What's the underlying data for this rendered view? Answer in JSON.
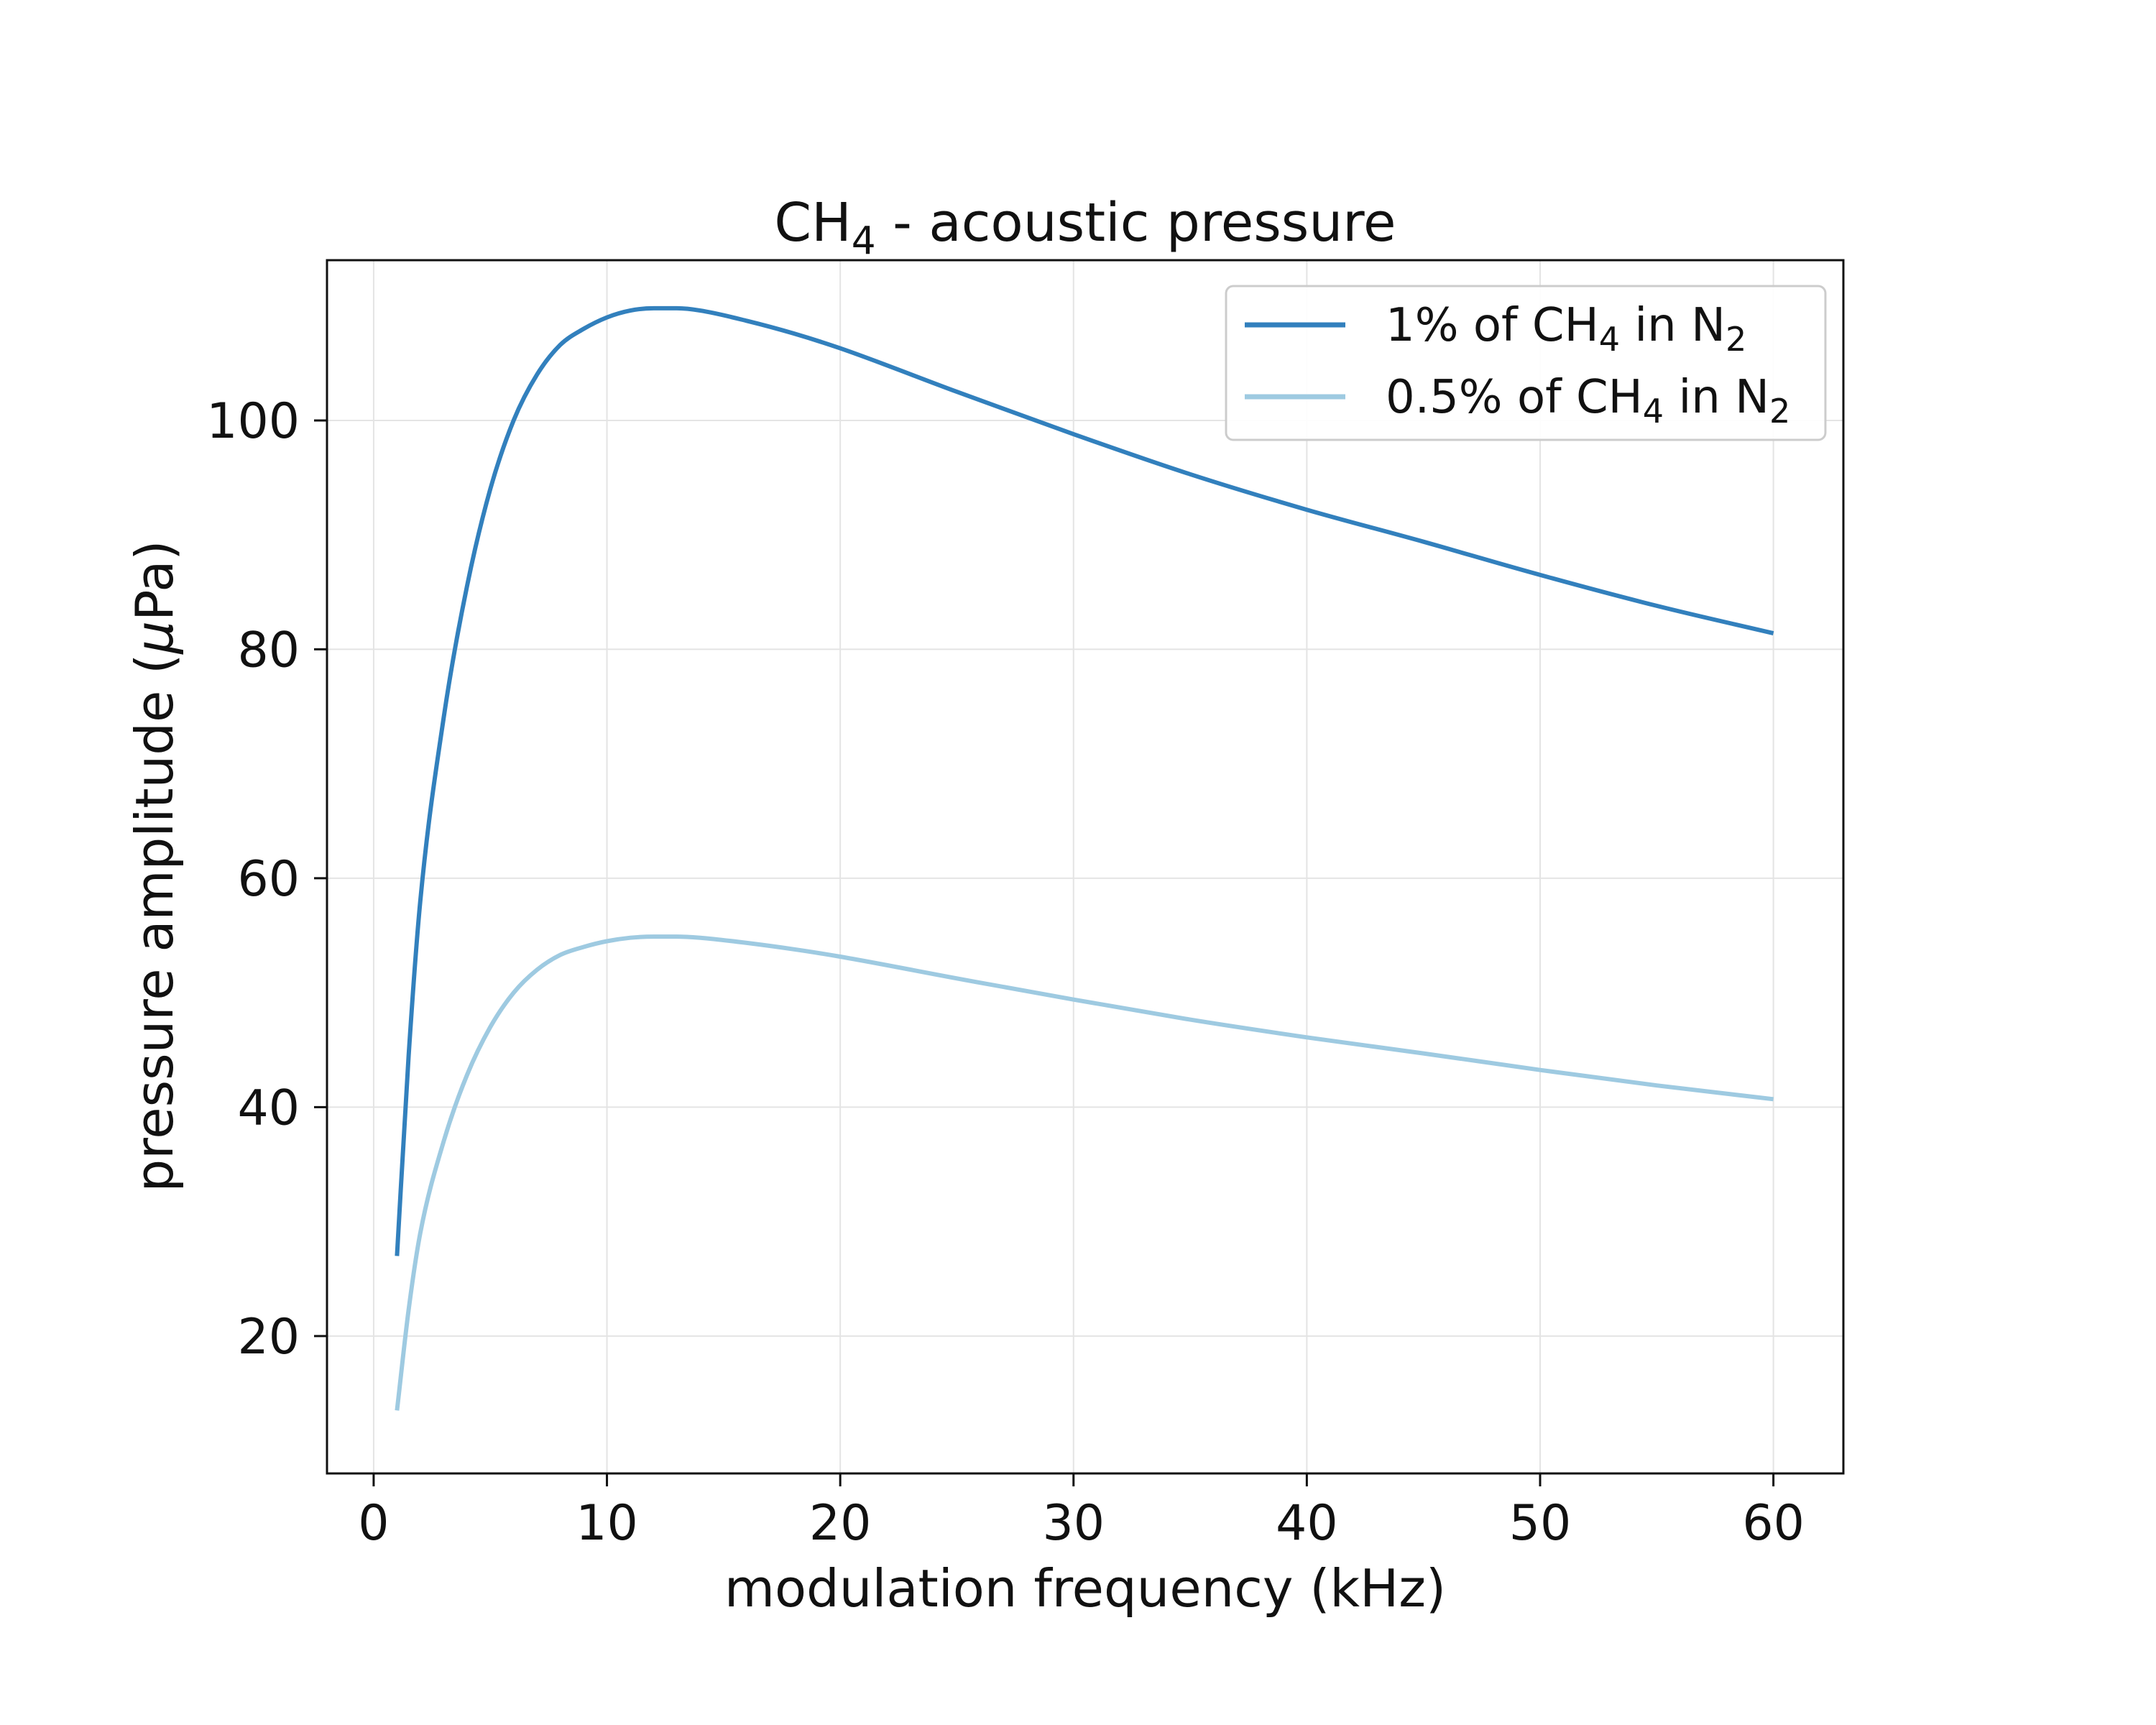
{
  "chart_data": {
    "type": "line",
    "title": {
      "main": "CH",
      "sub": "4",
      "rest": " - acoustic pressure"
    },
    "xlabel": "modulation frequency (kHz)",
    "ylabel": {
      "before": "pressure amplitude (",
      "mu": "μ",
      "after": "Pa)"
    },
    "xlim": [
      -2,
      63
    ],
    "ylim": [
      8,
      114
    ],
    "xticks": [
      0,
      10,
      20,
      30,
      40,
      50,
      60
    ],
    "xtick_labels": [
      "0",
      "10",
      "20",
      "30",
      "40",
      "50",
      "60"
    ],
    "yticks": [
      20,
      40,
      60,
      80,
      100
    ],
    "ytick_labels": [
      "20",
      "40",
      "60",
      "80",
      "100"
    ],
    "grid": true,
    "legend": {
      "position": "top-right"
    },
    "series": [
      {
        "name": "1% of CH4 in N2",
        "legend_parts": {
          "a": "1% of CH",
          "sub1": "4",
          "b": " in N",
          "sub2": "2"
        },
        "color": "#3280bd",
        "x": [
          1,
          1.5,
          2,
          3,
          4,
          5,
          6,
          7,
          8,
          9,
          10,
          11,
          12,
          13,
          14,
          16,
          18,
          20,
          25,
          30,
          35,
          40,
          45,
          50,
          55,
          60
        ],
        "y": [
          27,
          44.5,
          58,
          74,
          85.5,
          94,
          100,
          104,
          106.6,
          108,
          109,
          109.6,
          109.8,
          109.8,
          109.6,
          108.7,
          107.6,
          106.3,
          102.5,
          98.8,
          95.3,
          92.2,
          89.4,
          86.5,
          83.8,
          81.4
        ]
      },
      {
        "name": "0.5% of CH4 in N2",
        "legend_parts": {
          "a": "0.5% of CH",
          "sub1": "4",
          "b": " in N",
          "sub2": "2"
        },
        "color": "#9ecae1",
        "x": [
          1,
          1.5,
          2,
          3,
          4,
          5,
          6,
          7,
          8,
          9,
          10,
          11,
          12,
          13,
          14,
          16,
          18,
          20,
          25,
          30,
          35,
          40,
          45,
          50,
          55,
          60
        ],
        "y": [
          13.5,
          22.3,
          29,
          37,
          42.8,
          47,
          50,
          52,
          53.3,
          54,
          54.5,
          54.8,
          54.9,
          54.9,
          54.8,
          54.35,
          53.8,
          53.15,
          51.25,
          49.4,
          47.65,
          46.1,
          44.7,
          43.25,
          41.9,
          40.7
        ]
      }
    ]
  }
}
